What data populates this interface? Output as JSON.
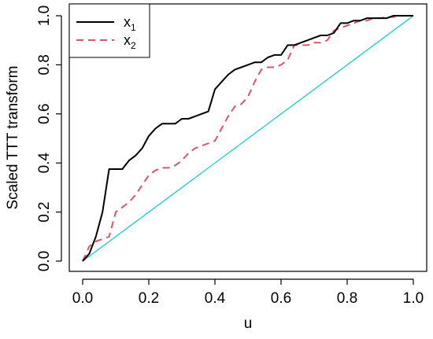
{
  "chart_data": {
    "type": "line",
    "title": "",
    "xlabel": "u",
    "ylabel": "Scaled TTT transform",
    "xlim": [
      0,
      1
    ],
    "ylim": [
      0,
      1
    ],
    "xticks": [
      "0.0",
      "0.2",
      "0.4",
      "0.6",
      "0.8",
      "1.0"
    ],
    "yticks": [
      "0.0",
      "0.2",
      "0.4",
      "0.6",
      "0.8",
      "1.0"
    ],
    "grid": false,
    "legend_position": "top-left",
    "series": [
      {
        "name": "x1",
        "legend_main": "x",
        "legend_sub": "1",
        "color": "#000000",
        "style": "solid",
        "points": [
          [
            0,
            0
          ],
          [
            0.02,
            0.03
          ],
          [
            0.04,
            0.1
          ],
          [
            0.06,
            0.2
          ],
          [
            0.08,
            0.375
          ],
          [
            0.1,
            0.375
          ],
          [
            0.12,
            0.375
          ],
          [
            0.14,
            0.41
          ],
          [
            0.16,
            0.43
          ],
          [
            0.18,
            0.46
          ],
          [
            0.2,
            0.51
          ],
          [
            0.22,
            0.54
          ],
          [
            0.24,
            0.56
          ],
          [
            0.26,
            0.56
          ],
          [
            0.28,
            0.56
          ],
          [
            0.3,
            0.58
          ],
          [
            0.32,
            0.58
          ],
          [
            0.34,
            0.59
          ],
          [
            0.36,
            0.6
          ],
          [
            0.38,
            0.61
          ],
          [
            0.4,
            0.7
          ],
          [
            0.42,
            0.73
          ],
          [
            0.44,
            0.76
          ],
          [
            0.46,
            0.78
          ],
          [
            0.48,
            0.79
          ],
          [
            0.5,
            0.8
          ],
          [
            0.52,
            0.81
          ],
          [
            0.54,
            0.81
          ],
          [
            0.56,
            0.83
          ],
          [
            0.58,
            0.84
          ],
          [
            0.6,
            0.84
          ],
          [
            0.62,
            0.88
          ],
          [
            0.64,
            0.88
          ],
          [
            0.66,
            0.89
          ],
          [
            0.68,
            0.9
          ],
          [
            0.7,
            0.91
          ],
          [
            0.72,
            0.92
          ],
          [
            0.74,
            0.92
          ],
          [
            0.76,
            0.93
          ],
          [
            0.78,
            0.97
          ],
          [
            0.8,
            0.97
          ],
          [
            0.82,
            0.98
          ],
          [
            0.84,
            0.98
          ],
          [
            0.86,
            0.99
          ],
          [
            0.88,
            0.99
          ],
          [
            0.9,
            0.99
          ],
          [
            0.92,
            0.99
          ],
          [
            0.94,
            1.0
          ],
          [
            0.96,
            1.0
          ],
          [
            0.98,
            1.0
          ],
          [
            1.0,
            1.0
          ]
        ]
      },
      {
        "name": "x2",
        "legend_main": "x",
        "legend_sub": "2",
        "color": "#DF536B",
        "style": "dashed",
        "points": [
          [
            0,
            0
          ],
          [
            0.02,
            0.06
          ],
          [
            0.04,
            0.08
          ],
          [
            0.06,
            0.09
          ],
          [
            0.08,
            0.1
          ],
          [
            0.1,
            0.2
          ],
          [
            0.12,
            0.22
          ],
          [
            0.14,
            0.24
          ],
          [
            0.16,
            0.27
          ],
          [
            0.18,
            0.31
          ],
          [
            0.2,
            0.35
          ],
          [
            0.22,
            0.37
          ],
          [
            0.24,
            0.38
          ],
          [
            0.26,
            0.38
          ],
          [
            0.28,
            0.39
          ],
          [
            0.3,
            0.41
          ],
          [
            0.32,
            0.44
          ],
          [
            0.34,
            0.46
          ],
          [
            0.36,
            0.47
          ],
          [
            0.38,
            0.48
          ],
          [
            0.4,
            0.49
          ],
          [
            0.42,
            0.54
          ],
          [
            0.44,
            0.59
          ],
          [
            0.46,
            0.63
          ],
          [
            0.48,
            0.64
          ],
          [
            0.5,
            0.67
          ],
          [
            0.52,
            0.73
          ],
          [
            0.54,
            0.78
          ],
          [
            0.56,
            0.79
          ],
          [
            0.58,
            0.79
          ],
          [
            0.6,
            0.8
          ],
          [
            0.62,
            0.82
          ],
          [
            0.64,
            0.88
          ],
          [
            0.66,
            0.88
          ],
          [
            0.68,
            0.88
          ],
          [
            0.7,
            0.89
          ],
          [
            0.72,
            0.89
          ],
          [
            0.74,
            0.9
          ],
          [
            0.76,
            0.94
          ],
          [
            0.78,
            0.95
          ],
          [
            0.8,
            0.96
          ],
          [
            0.82,
            0.97
          ],
          [
            0.84,
            0.98
          ],
          [
            0.86,
            0.98
          ],
          [
            0.88,
            0.99
          ],
          [
            0.9,
            0.99
          ],
          [
            0.92,
            0.995
          ],
          [
            0.94,
            0.995
          ],
          [
            0.96,
            1.0
          ],
          [
            0.98,
            1.0
          ],
          [
            1.0,
            1.0
          ]
        ]
      },
      {
        "name": "",
        "color": "#00CED1",
        "style": "solid",
        "points": [
          [
            0,
            0
          ],
          [
            1,
            1
          ]
        ]
      }
    ]
  }
}
